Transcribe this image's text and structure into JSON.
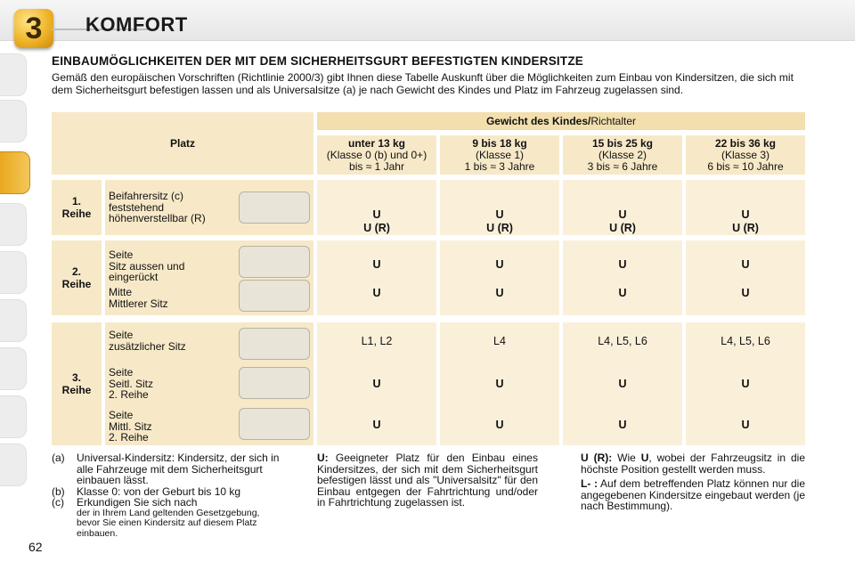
{
  "header": {
    "chapter_number": "3",
    "chapter_title": "KOMFORT"
  },
  "heading": "EINBAUMÖGLICHKEITEN DER MIT DEM SICHERHEITSGURT BEFESTIGTEN KINDERSITZE",
  "intro": "Gemäß den europäischen Vorschriften (Richtlinie 2000/3) gibt Ihnen diese Tabelle Auskunft über die Möglichkeiten zum Einbau von Kindersitzen, die sich mit dem Sicherheitsgurt befestigen lassen und als Universalsitze (a) je nach Gewicht des Kindes und Platz im Fahrzeug zugelassen sind.",
  "table": {
    "platz_label": "Platz",
    "weight_header_bold": "Gewicht des Kindes/",
    "weight_header_rest": "Richtalter",
    "columns": [
      {
        "title": "unter 13 kg",
        "line2": "(Klasse 0 (b) und 0+)",
        "line3": "bis ≈ 1 Jahr"
      },
      {
        "title": "9 bis 18 kg",
        "line2": "(Klasse 1)",
        "line3": "1 bis ≈ 3 Jahre"
      },
      {
        "title": "15 bis 25 kg",
        "line2": "(Klasse 2)",
        "line3": "3 bis ≈ 6 Jahre"
      },
      {
        "title": "22 bis 36 kg",
        "line2": "(Klasse 3)",
        "line3": "6 bis ≈ 10 Jahre"
      }
    ],
    "row1": {
      "label": "1.\nReihe",
      "seat": "Beifahrersitz (c)\nfeststehend\nhöhenverstellbar (R)",
      "values": [
        {
          "a": "U",
          "b": "U (R)"
        },
        {
          "a": "U",
          "b": "U (R)"
        },
        {
          "a": "U",
          "b": "U (R)"
        },
        {
          "a": "U",
          "b": "U (R)"
        }
      ]
    },
    "row2": {
      "label": "2.\nReihe",
      "seat_a": "Seite\nSitz aussen und\neingerückt",
      "seat_b": "Mitte\nMittlerer Sitz",
      "values_a": [
        "U",
        "U",
        "U",
        "U"
      ],
      "values_b": [
        "U",
        "U",
        "U",
        "U"
      ]
    },
    "row3": {
      "label": "3.\nReihe",
      "seat_a": "Seite\nzusätzlicher Sitz",
      "seat_b": "Seite\nSeitl. Sitz\n2. Reihe",
      "seat_c": "Seite\nMittl. Sitz\n2. Reihe",
      "values_a": [
        "L1, L2",
        "L4",
        "L4, L5, L6",
        "L4, L5, L6"
      ],
      "values_b": [
        "U",
        "U",
        "U",
        "U"
      ],
      "values_c": [
        "U",
        "U",
        "U",
        "U"
      ]
    }
  },
  "footnotes": {
    "a_key": "(a)",
    "a_text": "Universal-Kindersitz: Kindersitz, der sich in alle Fahrzeuge mit dem Sicherheitsgurt einbauen lässt.",
    "b_key": "(b)",
    "b_text": "Klasse 0: von der Geburt bis 10 kg",
    "c_key": "(c)",
    "c_text": "Erkundigen Sie sich nach",
    "c_small": "der in Ihrem Land geltenden Gesetzgebung, bevor Sie einen Kindersitz auf diesem Platz einbauen."
  },
  "legend": {
    "u_key": "U:",
    "u_text": "Geeigneter Platz für den Einbau eines Kindersitzes, der sich mit dem Sicherheitsgurt befestigen lässt und als \"Universalsitz\" für den Einbau entgegen der Fahrtrichtung und/oder in Fahrtrichtung zugelassen ist.",
    "ur_key": "U (R):",
    "ur_text_1": "Wie",
    "ur_text_u": "U",
    "ur_text_2": ", wobei der Fahrzeugsitz in die höchste Position gestellt werden muss.",
    "l_key": "L- :",
    "l_text": "Auf dem betreffenden Platz können nur die angegebenen Kindersitze eingebaut werden (je nach Bestimmung)."
  },
  "page_number": "62"
}
